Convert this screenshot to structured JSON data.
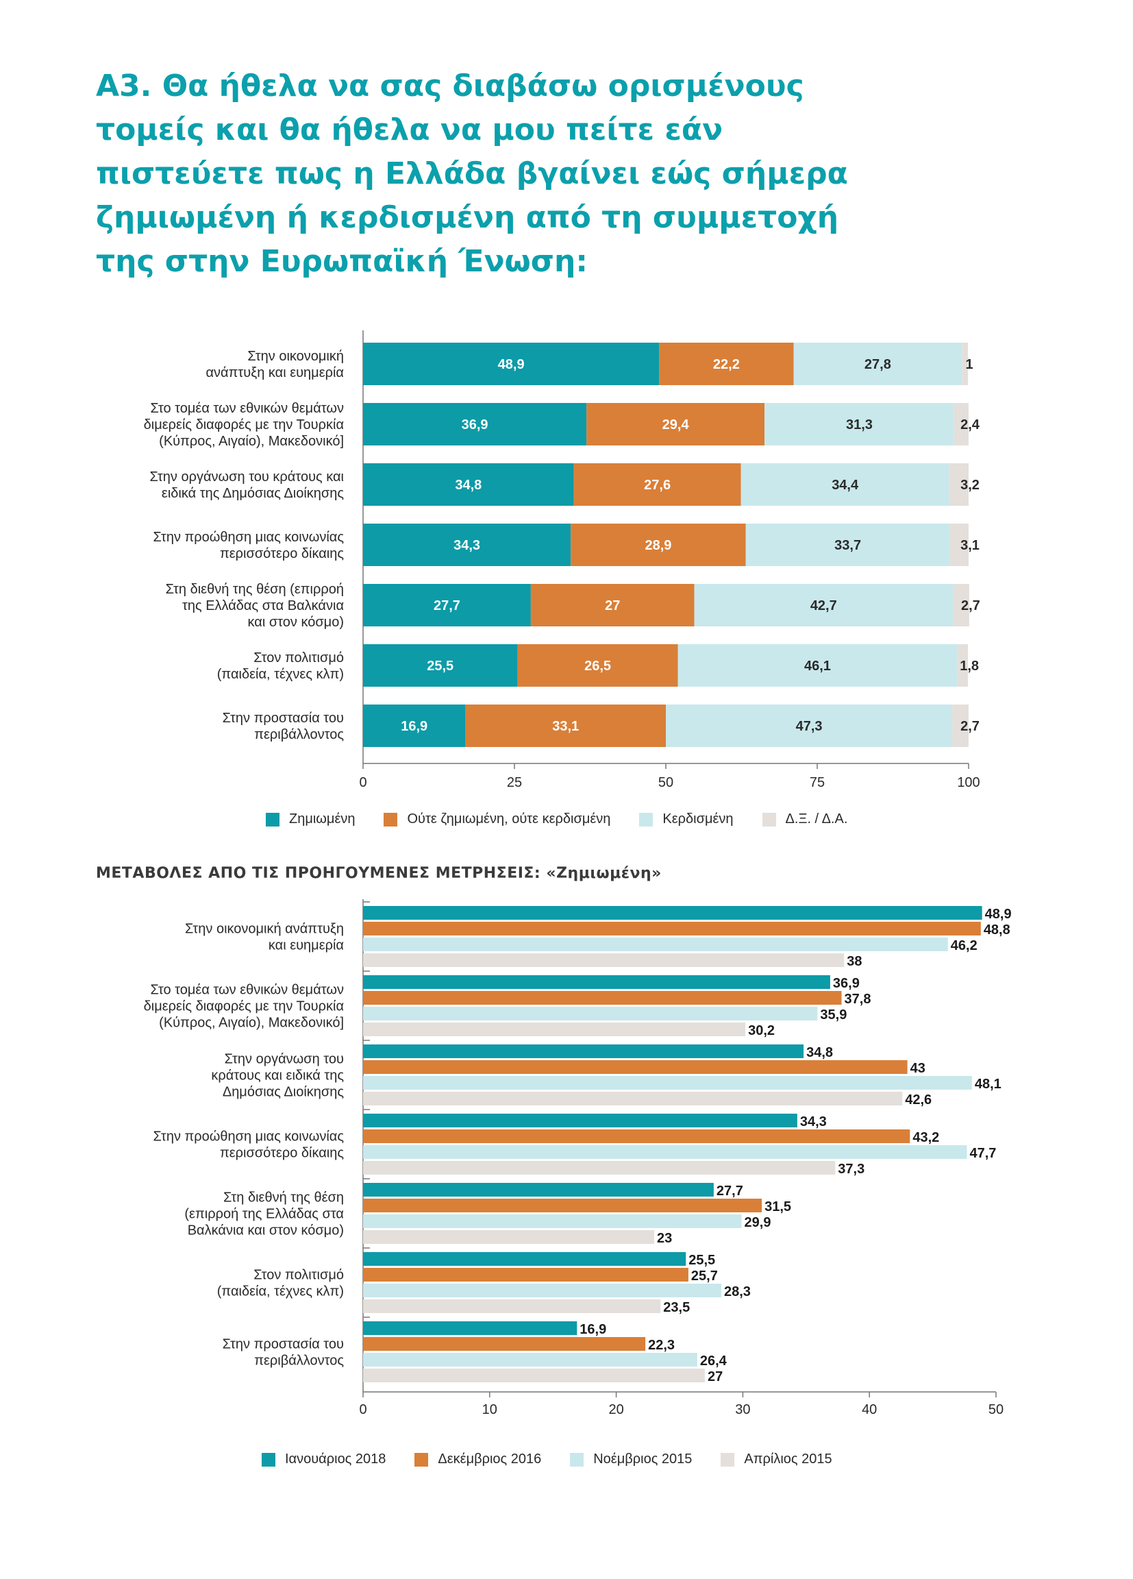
{
  "colors": {
    "title": "#0ba0ac",
    "subtitle": "#3a3a3a",
    "teal": "#0c9ba7",
    "orange": "#d97f38",
    "lightblue": "#c9e8ec",
    "beige": "#e4dfdb",
    "axis": "#777777"
  },
  "page": {
    "title_lines": [
      "Α3. Θα ήθελα να σας διαβάσω ορισμένους",
      "τομείς και θα ήθελα να μου πείτε εάν",
      "πιστεύετε πως η Ελλάδα βγαίνει εώς σήμερα",
      "ζημιωμένη ή κερδισμένη από τη συμμετοχή",
      "της στην Ευρωπαϊκή Ένωση:"
    ],
    "subtitle": "ΜΕΤΑΒΟΛΕΣ ΑΠΟ ΤΙΣ ΠΡΟΗΓΟΥΜΕΝΕΣ ΜΕΤΡΗΣΕΙΣ: «Ζημιωμένη»"
  },
  "chart_data": [
    {
      "type": "bar",
      "orientation": "horizontal",
      "stacked": true,
      "categories": [
        [
          "Στην οικονομική",
          "ανάπτυξη και ευημερία"
        ],
        [
          "Στο τομέα των εθνικών θεμάτων",
          "διμερείς διαφορές με την Τουρκία",
          "(Κύπρος, Αιγαίο), Μακεδονικό]"
        ],
        [
          "Στην οργάνωση του κράτους και",
          "ειδικά της Δημόσιας Διοίκησης"
        ],
        [
          "Στην προώθηση μιας κοινωνίας",
          "περισσότερο δίκαιης"
        ],
        [
          "Στη διεθνή της θέση  (επιρροή",
          "της Ελλάδας στα Βαλκάνια",
          "και στον κόσμο)"
        ],
        [
          "Στον πολιτισμό",
          "(παιδεία, τέχνες κλπ)"
        ],
        [
          "Στην προστασία του",
          "περιβάλλοντος"
        ]
      ],
      "series": [
        {
          "name": "Ζημιωμένη",
          "color": "#0c9ba7",
          "values": [
            48.9,
            36.9,
            34.8,
            34.3,
            27.7,
            25.5,
            16.9
          ],
          "labels": [
            "48,9",
            "36,9",
            "34,8",
            "34,3",
            "27,7",
            "25,5",
            "16,9"
          ]
        },
        {
          "name": "Ούτε ζημιωμένη, ούτε κερδισμένη",
          "color": "#d97f38",
          "values": [
            22.2,
            29.4,
            27.6,
            28.9,
            27,
            26.5,
            33.1
          ],
          "labels": [
            "22,2",
            "29,4",
            "27,6",
            "28,9",
            "27",
            "26,5",
            "33,1"
          ]
        },
        {
          "name": "Κερδισμένη",
          "color": "#c9e8ec",
          "values": [
            27.8,
            31.3,
            34.4,
            33.7,
            42.7,
            46.1,
            47.3
          ],
          "labels": [
            "27,8",
            "31,3",
            "34,4",
            "33,7",
            "42,7",
            "46,1",
            "47,3"
          ]
        },
        {
          "name": "Δ.Ξ. / Δ.Α.",
          "color": "#e4dfdb",
          "values": [
            1,
            2.4,
            3.2,
            3.1,
            2.7,
            1.8,
            2.7
          ],
          "labels": [
            "1",
            "2,4",
            "3,2",
            "3,1",
            "2,7",
            "1,8",
            "2,7"
          ]
        }
      ],
      "xlim": [
        0,
        100
      ],
      "xticks": [
        0,
        25,
        50,
        75,
        100
      ],
      "xticklabels": [
        "0",
        "25",
        "50",
        "75",
        "100"
      ],
      "legend": "bottom"
    },
    {
      "type": "bar",
      "orientation": "horizontal",
      "stacked": false,
      "categories": [
        [
          "Στην οικονομική ανάπτυξη",
          "και ευημερία"
        ],
        [
          "Στο τομέα των εθνικών θεμάτων",
          "διμερείς διαφορές με την Τουρκία",
          "(Κύπρος, Αιγαίο), Μακεδονικό]"
        ],
        [
          "Στην οργάνωση του",
          "κράτους και ειδικά της",
          "Δημόσιας Διοίκησης"
        ],
        [
          "Στην προώθηση μιας κοινωνίας",
          "περισσότερο δίκαιης"
        ],
        [
          "Στη διεθνή της θέση",
          "(επιρροή της Ελλάδας στα",
          "Βαλκάνια και στον κόσμο)"
        ],
        [
          "Στον πολιτισμό",
          "(παιδεία, τέχνες κλπ)"
        ],
        [
          "Στην προστασία του",
          "περιβάλλοντος"
        ]
      ],
      "series": [
        {
          "name": "Ιανουάριος 2018",
          "color": "#0c9ba7",
          "values": [
            48.9,
            36.9,
            34.8,
            34.3,
            27.7,
            25.5,
            16.9
          ],
          "labels": [
            "48,9",
            "36,9",
            "34,8",
            "34,3",
            "27,7",
            "25,5",
            "16,9"
          ]
        },
        {
          "name": "Δεκέμβριος 2016",
          "color": "#d97f38",
          "values": [
            48.8,
            37.8,
            43,
            43.2,
            31.5,
            25.7,
            22.3
          ],
          "labels": [
            "48,8",
            "37,8",
            "43",
            "43,2",
            "31,5",
            "25,7",
            "22,3"
          ]
        },
        {
          "name": "Νοέμβριος 2015",
          "color": "#c9e8ec",
          "values": [
            46.2,
            35.9,
            48.1,
            47.7,
            29.9,
            28.3,
            26.4
          ],
          "labels": [
            "46,2",
            "35,9",
            "48,1",
            "47,7",
            "29,9",
            "28,3",
            "26,4"
          ]
        },
        {
          "name": "Απρίλιος 2015",
          "color": "#e4dfdb",
          "values": [
            38,
            30.2,
            42.6,
            37.3,
            23,
            23.5,
            27
          ],
          "labels": [
            "38",
            "30,2",
            "42,6",
            "37,3",
            "23",
            "23,5",
            "27"
          ]
        }
      ],
      "xlim": [
        0,
        50
      ],
      "xticks": [
        0,
        10,
        20,
        30,
        40,
        50
      ],
      "xticklabels": [
        "0",
        "10",
        "20",
        "30",
        "40",
        "50"
      ],
      "legend": "bottom"
    }
  ]
}
